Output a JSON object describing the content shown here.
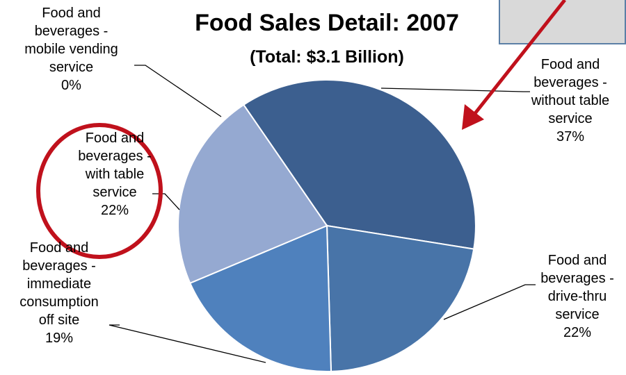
{
  "chart_data": {
    "type": "pie",
    "title": "Food Sales Detail: 2007",
    "subtitle": "(Total: $3.1 Billion)",
    "slices": [
      {
        "label_lines": [
          "Food and",
          "beverages -",
          "without table",
          "service"
        ],
        "pct_label": "37%",
        "value": 37,
        "color": "#3c5f8f"
      },
      {
        "label_lines": [
          "Food and",
          "beverages -",
          "drive-thru",
          "service"
        ],
        "pct_label": "22%",
        "value": 22,
        "color": "#4874a8"
      },
      {
        "label_lines": [
          "Food and",
          "beverages -",
          "immediate",
          "consumption",
          "off site"
        ],
        "pct_label": "19%",
        "value": 19,
        "color": "#4f81bd"
      },
      {
        "label_lines": [
          "Food and",
          "beverages -",
          "with table",
          "service"
        ],
        "pct_label": "22%",
        "value": 22,
        "color": "#95a9d1"
      },
      {
        "label_lines": [
          "Food and",
          "beverages -",
          "mobile vending",
          "service"
        ],
        "pct_label": "0%",
        "value": 0,
        "color": "#7f9bc9"
      }
    ],
    "annotations": {
      "highlight_circle_color": "#c0111c",
      "arrow_color": "#c0111c",
      "callout_box_color": "#d9d9d9"
    }
  }
}
